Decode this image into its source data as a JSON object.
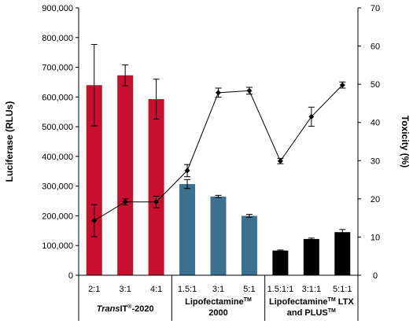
{
  "chart_data": {
    "type": "bar",
    "categories": [
      "2:1",
      "3:1",
      "4:1",
      "1.5:1",
      "3:1",
      "5:1",
      "1.5:1:1",
      "3:1:1",
      "5:1:1"
    ],
    "groups": [
      {
        "label": "TransIT®-2020",
        "label_parts": [
          "Trans",
          "IT",
          "®",
          "-2020"
        ],
        "count": 3,
        "color": "#c8102e"
      },
      {
        "label": "Lipofectamine™ 2000",
        "label_line1": "Lipofectamine",
        "label_tm": "TM",
        "label_line2": "2000",
        "count": 3,
        "color": "#3d7191"
      },
      {
        "label": "Lipofectamine™ LTX and PLUS™",
        "label_line1": "Lipofectamine",
        "label_tm": "TM",
        "label_line1_rest": " LTX",
        "label_line2": "and PLUS",
        "label_tm2": "TM",
        "count": 3,
        "color": "#000000"
      }
    ],
    "series": [
      {
        "kind": "bar",
        "axis": "left",
        "values": [
          640000,
          673000,
          593000,
          307000,
          265000,
          200000,
          83000,
          122000,
          145000
        ],
        "errors": [
          137000,
          35000,
          67000,
          15000,
          4000,
          5000,
          2000,
          3000,
          9000
        ]
      },
      {
        "kind": "line",
        "axis": "right",
        "values": [
          14.3,
          19.2,
          19.2,
          27.4,
          47.8,
          48.3,
          29.9,
          41.5,
          49.8
        ],
        "errors": [
          4.2,
          0.8,
          1.5,
          1.6,
          1.2,
          0.9,
          0.7,
          2.5,
          0.8
        ]
      }
    ],
    "ylabel": "Luciferase (RLUs)",
    "y2label": "Toxicity (%)",
    "ylim": [
      0,
      900000
    ],
    "y2lim": [
      0,
      70
    ],
    "yticks": [
      "0",
      "100,000",
      "200,000",
      "300,000",
      "400,000",
      "500,000",
      "600,000",
      "700,000",
      "800,000",
      "900,000"
    ],
    "y2ticks": [
      "0",
      "10",
      "20",
      "30",
      "40",
      "50",
      "60",
      "70"
    ],
    "grid": false,
    "legend": "none"
  }
}
